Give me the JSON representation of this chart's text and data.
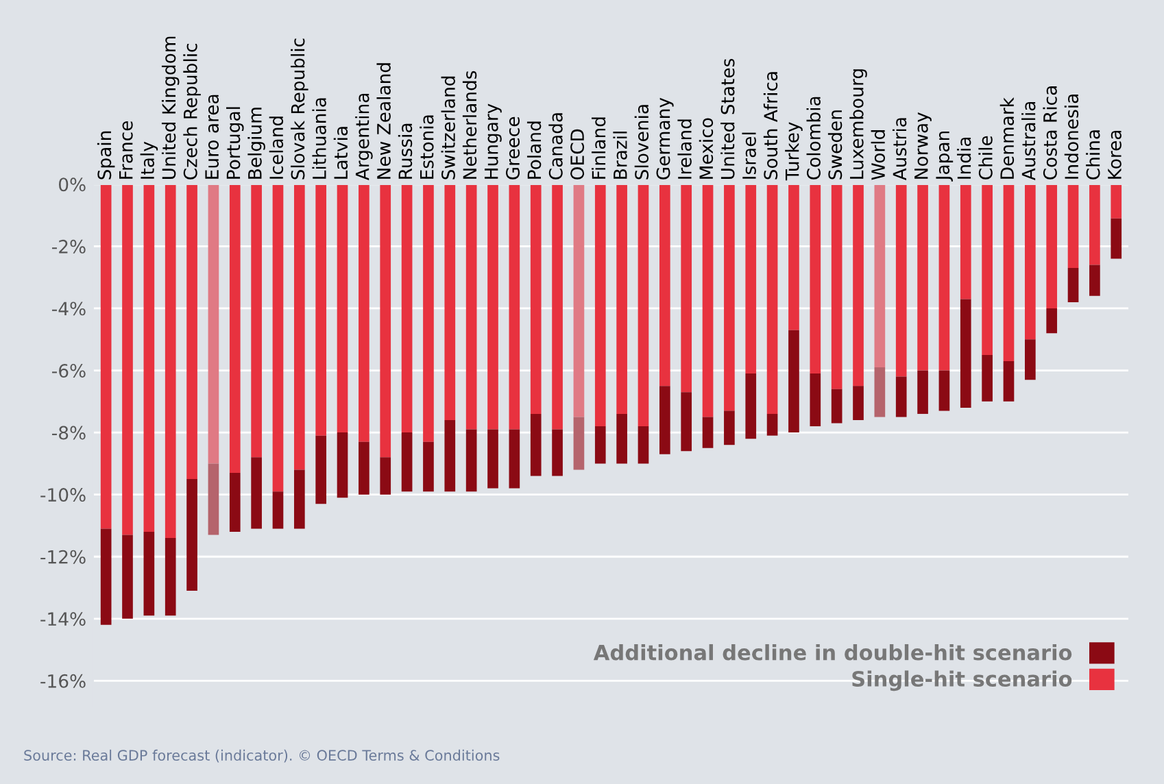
{
  "chart_data": {
    "type": "bar",
    "stacked": true,
    "categories": [
      "Spain",
      "France",
      "Italy",
      "United Kingdom",
      "Czech Republic",
      "Euro area",
      "Portugal",
      "Belgium",
      "Iceland",
      "Slovak Republic",
      "Lithuania",
      "Latvia",
      "Argentina",
      "New Zealand",
      "Russia",
      "Estonia",
      "Switzerland",
      "Netherlands",
      "Hungary",
      "Greece",
      "Poland",
      "Canada",
      "OECD",
      "Finland",
      "Brazil",
      "Slovenia",
      "Germany",
      "Ireland",
      "Mexico",
      "United States",
      "Israel",
      "South Africa",
      "Turkey",
      "Colombia",
      "Sweden",
      "Luxembourg",
      "World",
      "Austria",
      "Norway",
      "Japan",
      "India",
      "Chile",
      "Denmark",
      "Australia",
      "Costa Rica",
      "Indonesia",
      "China",
      "Korea"
    ],
    "series": [
      {
        "name": "Single-hit scenario",
        "color": "#e8323f",
        "colors": [
          "#e8323f",
          "#e8323f",
          "#e8323f",
          "#e8323f",
          "#e8323f",
          "#e07a84",
          "#e8323f",
          "#e8323f",
          "#e8323f",
          "#e8323f",
          "#e8323f",
          "#e8323f",
          "#e8323f",
          "#e8323f",
          "#e8323f",
          "#e8323f",
          "#e8323f",
          "#e8323f",
          "#e8323f",
          "#e8323f",
          "#e8323f",
          "#e8323f",
          "#e07a84",
          "#e8323f",
          "#e8323f",
          "#e8323f",
          "#e8323f",
          "#e8323f",
          "#e8323f",
          "#e8323f",
          "#e8323f",
          "#e8323f",
          "#e8323f",
          "#e8323f",
          "#e8323f",
          "#e8323f",
          "#e07a84",
          "#e8323f",
          "#e8323f",
          "#e8323f",
          "#e8323f",
          "#e8323f",
          "#e8323f",
          "#e8323f",
          "#e8323f",
          "#e8323f",
          "#e8323f",
          "#e8323f"
        ],
        "values": [
          -11.1,
          -11.3,
          -11.2,
          -11.4,
          -9.5,
          -9.0,
          -9.3,
          -8.8,
          -9.9,
          -9.2,
          -8.1,
          -8.0,
          -8.3,
          -8.8,
          -8.0,
          -8.3,
          -7.6,
          -7.9,
          -7.9,
          -7.9,
          -7.4,
          -7.9,
          -7.5,
          -7.8,
          -7.4,
          -7.8,
          -6.5,
          -6.7,
          -7.5,
          -7.3,
          -6.1,
          -7.4,
          -4.7,
          -6.1,
          -6.6,
          -6.5,
          -5.9,
          -6.2,
          -6.0,
          -6.0,
          -3.7,
          -5.5,
          -5.7,
          -5.0,
          -4.0,
          -2.7,
          -2.6,
          -1.1
        ]
      },
      {
        "name": "Additional decline in double-hit scenario",
        "color": "#8b0a14",
        "colors": [
          "#8b0a14",
          "#8b0a14",
          "#8b0a14",
          "#8b0a14",
          "#8b0a14",
          "#b5646c",
          "#8b0a14",
          "#8b0a14",
          "#8b0a14",
          "#8b0a14",
          "#8b0a14",
          "#8b0a14",
          "#8b0a14",
          "#8b0a14",
          "#8b0a14",
          "#8b0a14",
          "#8b0a14",
          "#8b0a14",
          "#8b0a14",
          "#8b0a14",
          "#8b0a14",
          "#8b0a14",
          "#b5646c",
          "#8b0a14",
          "#8b0a14",
          "#8b0a14",
          "#8b0a14",
          "#8b0a14",
          "#8b0a14",
          "#8b0a14",
          "#8b0a14",
          "#8b0a14",
          "#8b0a14",
          "#8b0a14",
          "#8b0a14",
          "#8b0a14",
          "#b5646c",
          "#8b0a14",
          "#8b0a14",
          "#8b0a14",
          "#8b0a14",
          "#8b0a14",
          "#8b0a14",
          "#8b0a14",
          "#8b0a14",
          "#8b0a14",
          "#8b0a14",
          "#8b0a14"
        ],
        "values": [
          -3.1,
          -2.7,
          -2.7,
          -2.5,
          -3.6,
          -2.3,
          -1.9,
          -2.3,
          -1.2,
          -1.9,
          -2.2,
          -2.1,
          -1.7,
          -1.2,
          -1.9,
          -1.6,
          -2.3,
          -2.0,
          -1.9,
          -1.9,
          -2.0,
          -1.5,
          -1.7,
          -1.2,
          -1.6,
          -1.2,
          -2.2,
          -1.9,
          -1.0,
          -1.1,
          -2.1,
          -0.7,
          -3.3,
          -1.7,
          -1.1,
          -1.1,
          -1.6,
          -1.3,
          -1.4,
          -1.3,
          -3.5,
          -1.5,
          -1.3,
          -1.3,
          -0.8,
          -1.1,
          -1.0,
          -1.3
        ]
      }
    ],
    "ylim": [
      -16.8,
      0
    ],
    "yticks": [
      {
        "value": 0,
        "label": "0%"
      },
      {
        "value": -2,
        "label": "-2%"
      },
      {
        "value": -4,
        "label": "-4%"
      },
      {
        "value": -6,
        "label": "-6%"
      },
      {
        "value": -8,
        "label": "-8%"
      },
      {
        "value": -10,
        "label": "-10%"
      },
      {
        "value": -12,
        "label": "-12%"
      },
      {
        "value": -14,
        "label": "-14%"
      },
      {
        "value": -16,
        "label": "-16%"
      }
    ],
    "grid": "y",
    "legend": "bottom right",
    "annotations": [
      "Source: Real GDP forecast (indicator). © OECD Terms & Conditions"
    ]
  }
}
